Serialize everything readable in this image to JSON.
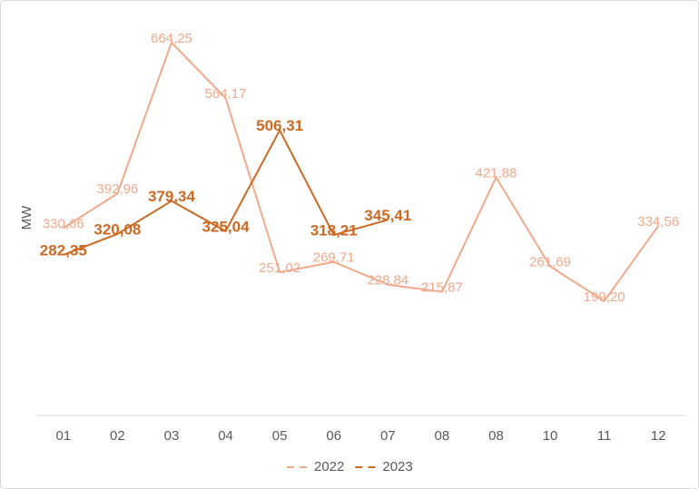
{
  "chart_data": {
    "type": "line",
    "y_label": "MW",
    "categories": [
      "01",
      "02",
      "03",
      "04",
      "05",
      "06",
      "07",
      "08",
      "08",
      "10",
      "11",
      "12"
    ],
    "ylim": [
      0,
      700
    ],
    "series": [
      {
        "name": "2022",
        "color": "#f2a98b",
        "values": [
          330.66,
          392.96,
          664.25,
          564.17,
          251.02,
          269.71,
          228.84,
          215.87,
          421.88,
          261.69,
          199.2,
          334.56
        ],
        "value_labels": [
          "330,66",
          "392,96",
          "664,25",
          "564,17",
          "251,02",
          "269,71",
          "228,84",
          "215,87",
          "421,88",
          "261,69",
          "199,20",
          "334,56"
        ]
      },
      {
        "name": "2023",
        "color": "#cc6a24",
        "values": [
          282.35,
          320.08,
          379.34,
          325.04,
          506.31,
          318.21,
          345.41,
          null,
          null,
          null,
          null,
          null
        ],
        "value_labels": [
          "282,35",
          "320,08",
          "379,34",
          "325,04",
          "506,31",
          "318,21",
          "345,41",
          null,
          null,
          null,
          null,
          null
        ]
      }
    ]
  }
}
